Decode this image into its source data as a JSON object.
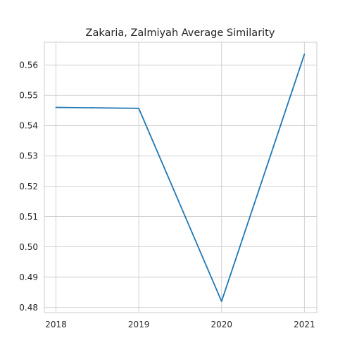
{
  "chart_data": {
    "type": "line",
    "title": "Zakaria, Zalmiyah Average Similarity",
    "xlabel": "",
    "ylabel": "",
    "categories": [
      "2018",
      "2019",
      "2020",
      "2021"
    ],
    "x": [
      2018,
      2019,
      2020,
      2021
    ],
    "series": [
      {
        "values": [
          0.546,
          0.5457,
          0.482,
          0.5635
        ]
      }
    ],
    "xlim": [
      2017.86,
      2021.15
    ],
    "ylim": [
      0.4783,
      0.5675
    ],
    "yticks": [
      0.48,
      0.49,
      0.5,
      0.51,
      0.52,
      0.53,
      0.54,
      0.55,
      0.56
    ],
    "ytick_labels": [
      "0.48",
      "0.49",
      "0.50",
      "0.51",
      "0.52",
      "0.53",
      "0.54",
      "0.55",
      "0.56"
    ],
    "grid": true,
    "legend": "none",
    "colors": {
      "line": "#1f77b4",
      "grid": "#cccccc",
      "text": "#262626"
    }
  }
}
